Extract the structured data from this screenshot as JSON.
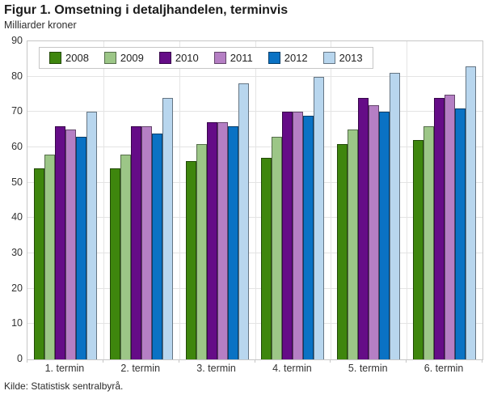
{
  "header": {
    "title": "Figur 1. Omsetning i detaljhandelen, terminvis",
    "subtitle": "Milliarder kroner"
  },
  "footer": {
    "source": "Kilde: Statistisk sentralbyrå."
  },
  "colors": {
    "grid": "#e4e4e4",
    "frame": "#c6c6c6",
    "text": "#333333"
  },
  "chart_data": {
    "type": "bar",
    "title": "Figur 1. Omsetning i detaljhandelen, terminvis",
    "ylabel": "Milliarder kroner",
    "xlabel": "",
    "categories": [
      "1. termin",
      "2. termin",
      "3. termin",
      "4. termin",
      "5. termin",
      "6. termin"
    ],
    "series": [
      {
        "name": "2008",
        "color": "#3e860d",
        "values": [
          54,
          54,
          56,
          57,
          61,
          62
        ]
      },
      {
        "name": "2009",
        "color": "#9cc687",
        "values": [
          58,
          58,
          61,
          63,
          65,
          66
        ]
      },
      {
        "name": "2010",
        "color": "#650c87",
        "values": [
          66,
          66,
          67,
          70,
          74,
          74
        ]
      },
      {
        "name": "2011",
        "color": "#b57fc4",
        "values": [
          65,
          66,
          67,
          70,
          72,
          75
        ]
      },
      {
        "name": "2012",
        "color": "#0a72c4",
        "values": [
          63,
          64,
          66,
          69,
          70,
          71
        ]
      },
      {
        "name": "2013",
        "color": "#b8d6ee",
        "values": [
          70,
          74,
          78,
          80,
          81,
          83
        ]
      }
    ],
    "ylim": [
      0,
      90
    ],
    "yticks": [
      0,
      10,
      20,
      30,
      40,
      50,
      60,
      70,
      80,
      90
    ],
    "grid": true,
    "legend_position": "top-left-inside"
  }
}
